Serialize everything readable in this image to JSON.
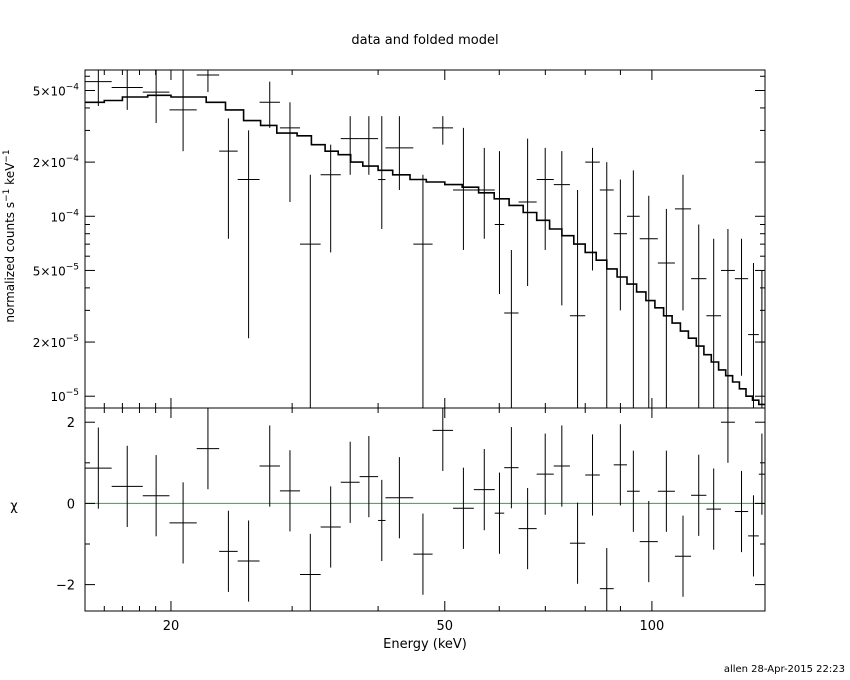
{
  "chart_data": {
    "type": "scatter",
    "title": "data and folded model",
    "xlabel": "Energy (keV)",
    "x_scale": "log",
    "xlim": [
      15,
      146
    ],
    "x_ticks": [
      {
        "value": 20,
        "label": "20"
      },
      {
        "value": 50,
        "label": "50"
      },
      {
        "value": 100,
        "label": "100"
      }
    ],
    "footer": "allen 28-Apr-2015 22:23",
    "top_panel": {
      "ylabel_parts": [
        "normalized counts s",
        "−1",
        " keV",
        "−1"
      ],
      "y_scale": "log",
      "ylim": [
        8.6e-06,
        0.00065
      ],
      "y_ticks": [
        {
          "value": 1e-05,
          "label_m": "10",
          "label_e": "−5"
        },
        {
          "value": 2e-05,
          "label_m": "2×10",
          "label_e": "−5"
        },
        {
          "value": 5e-05,
          "label_m": "5×10",
          "label_e": "−5"
        },
        {
          "value": 0.0001,
          "label_m": "10",
          "label_e": "−4"
        },
        {
          "value": 0.0002,
          "label_m": "2×10",
          "label_e": "−4"
        },
        {
          "value": 0.0005,
          "label_m": "5×10",
          "label_e": "−4"
        }
      ],
      "data": [
        [
          15.0,
          16.4,
          0.00056,
          0.00041,
          0.00065
        ],
        [
          16.4,
          18.2,
          0.00052,
          0.00039,
          0.00065
        ],
        [
          18.2,
          19.9,
          0.00049,
          0.00033,
          0.00065
        ],
        [
          19.9,
          21.8,
          0.00039,
          0.00023,
          0.00065
        ],
        [
          21.8,
          23.5,
          0.00061,
          0.00049,
          0.00065
        ],
        [
          23.5,
          25.0,
          0.00023,
          7.5e-05,
          0.00035
        ],
        [
          25.0,
          26.9,
          0.00016,
          2.1e-05,
          0.0003
        ],
        [
          26.9,
          28.8,
          0.00043,
          0.00031,
          0.00056
        ],
        [
          28.8,
          30.8,
          0.00031,
          0.00012,
          0.00043
        ],
        [
          30.8,
          33.0,
          7e-05,
          8.6e-06,
          0.00017
        ],
        [
          33.0,
          35.3,
          0.00017,
          6.3e-05,
          0.00025
        ],
        [
          35.3,
          37.6,
          0.00027,
          0.00017,
          0.00036
        ],
        [
          37.6,
          40.0,
          0.00027,
          0.00017,
          0.00036
        ],
        [
          40.0,
          41.0,
          0.00016,
          8.5e-05,
          0.00036
        ],
        [
          41.0,
          45.0,
          0.00024,
          0.00014,
          0.00036
        ],
        [
          45.0,
          48.0,
          7e-05,
          8.6e-06,
          0.00017
        ],
        [
          48.0,
          51.4,
          0.00031,
          0.00025,
          0.00036
        ],
        [
          51.4,
          55.1,
          0.00014,
          6.5e-05,
          0.00031
        ],
        [
          55.1,
          59.1,
          0.00014,
          7.5e-05,
          0.00024
        ],
        [
          59.1,
          61.0,
          9e-05,
          3.7e-05,
          0.00023
        ],
        [
          61.0,
          64.0,
          2.9e-05,
          8.6e-06,
          6.5e-05
        ],
        [
          64.0,
          68.0,
          0.00012,
          4.1e-05,
          0.00027
        ],
        [
          68.0,
          72.0,
          0.00016,
          6.5e-05,
          0.00024
        ],
        [
          72.0,
          76.0,
          0.00015,
          3.2e-05,
          0.00023
        ],
        [
          76.0,
          80.0,
          2.8e-05,
          8.6e-06,
          0.00014
        ],
        [
          80.0,
          84.0,
          0.0002,
          5e-05,
          0.00024
        ],
        [
          84.0,
          88.0,
          0.00014,
          8.6e-06,
          0.0002
        ],
        [
          88.0,
          92.0,
          8e-05,
          3e-05,
          0.00016
        ],
        [
          92.0,
          96.0,
          0.0001,
          8.6e-06,
          0.00018
        ],
        [
          96.0,
          102.0,
          7.5e-05,
          8.6e-06,
          0.00013
        ],
        [
          102.0,
          108.0,
          5.5e-05,
          8.6e-06,
          0.00011
        ],
        [
          108.0,
          114.0,
          0.00011,
          3e-05,
          0.00017
        ],
        [
          114.0,
          120.0,
          4.5e-05,
          8.6e-06,
          9e-05
        ],
        [
          120.0,
          126.0,
          2.8e-05,
          8.6e-06,
          7.5e-05
        ],
        [
          126.0,
          132.0,
          5e-05,
          8.6e-06,
          8.5e-05
        ],
        [
          132.0,
          138.0,
          4.5e-05,
          1.3e-05,
          7.5e-05
        ],
        [
          138.0,
          143.0,
          2.2e-05,
          8.6e-06,
          5.5e-05
        ],
        [
          143.0,
          146.0,
          2e-05,
          8.6e-06,
          5e-05
        ]
      ],
      "model_steps": [
        [
          15.0,
          0.00043
        ],
        [
          16.0,
          0.00044
        ],
        [
          17.0,
          0.00046
        ],
        [
          18.5,
          0.00047
        ],
        [
          20.0,
          0.00046
        ],
        [
          21.5,
          0.00046
        ],
        [
          22.5,
          0.00043
        ],
        [
          24.0,
          0.00039
        ],
        [
          25.5,
          0.00034
        ],
        [
          27.0,
          0.00032
        ],
        [
          28.5,
          0.00029
        ],
        [
          30.5,
          0.00028
        ],
        [
          32.0,
          0.00025
        ],
        [
          33.5,
          0.00023
        ],
        [
          35.0,
          0.00022
        ],
        [
          36.5,
          0.0002
        ],
        [
          38.0,
          0.00019
        ],
        [
          40.0,
          0.00018
        ],
        [
          42.0,
          0.00017
        ],
        [
          44.5,
          0.00016
        ],
        [
          47.0,
          0.000155
        ],
        [
          50.0,
          0.00015
        ],
        [
          53.0,
          0.000145
        ],
        [
          56.0,
          0.000135
        ],
        [
          59.0,
          0.000125
        ],
        [
          62.0,
          0.000115
        ],
        [
          65.0,
          0.000105
        ],
        [
          68.0,
          9.5e-05
        ],
        [
          71.0,
          8.5e-05
        ],
        [
          74.0,
          7.8e-05
        ],
        [
          77.0,
          7e-05
        ],
        [
          80.0,
          6.3e-05
        ],
        [
          83.0,
          5.7e-05
        ],
        [
          86.0,
          5.1e-05
        ],
        [
          89.0,
          4.6e-05
        ],
        [
          92.0,
          4.2e-05
        ],
        [
          95.0,
          3.8e-05
        ],
        [
          98.0,
          3.4e-05
        ],
        [
          101.0,
          3.1e-05
        ],
        [
          104.0,
          2.8e-05
        ],
        [
          107.0,
          2.55e-05
        ],
        [
          110.0,
          2.3e-05
        ],
        [
          113.0,
          2.1e-05
        ],
        [
          116.0,
          1.9e-05
        ],
        [
          119.0,
          1.7e-05
        ],
        [
          122.0,
          1.55e-05
        ],
        [
          125.0,
          1.4e-05
        ],
        [
          128.0,
          1.3e-05
        ],
        [
          131.0,
          1.2e-05
        ],
        [
          134.0,
          1.1e-05
        ],
        [
          137.0,
          1e-05
        ],
        [
          140.0,
          9.5e-06
        ],
        [
          143.0,
          9e-06
        ],
        [
          146.0,
          9e-06
        ]
      ]
    },
    "bottom_panel": {
      "ylabel": "χ",
      "ylim": [
        -2.65,
        2.35
      ],
      "y_ticks": [
        {
          "value": -2,
          "label": "−2"
        },
        {
          "value": 0,
          "label": "0"
        },
        {
          "value": 2,
          "label": "2"
        }
      ],
      "zero_line_color": "#00cc00",
      "data": [
        [
          15.0,
          16.4,
          0.87,
          -0.13,
          1.87
        ],
        [
          16.4,
          18.2,
          0.42,
          -0.58,
          1.42
        ],
        [
          18.2,
          19.9,
          0.19,
          -0.81,
          1.19
        ],
        [
          19.9,
          21.8,
          -0.48,
          -1.48,
          0.52
        ],
        [
          21.8,
          23.5,
          1.35,
          0.35,
          2.35
        ],
        [
          23.5,
          25.0,
          -1.18,
          -2.18,
          -0.18
        ],
        [
          25.0,
          26.9,
          -1.42,
          -2.42,
          -0.42
        ],
        [
          26.9,
          28.8,
          0.92,
          -0.08,
          1.92
        ],
        [
          28.8,
          30.8,
          0.31,
          -0.69,
          1.31
        ],
        [
          30.8,
          33.0,
          -1.75,
          -2.65,
          -0.75
        ],
        [
          33.0,
          35.3,
          -0.58,
          -1.58,
          0.42
        ],
        [
          35.3,
          37.6,
          0.52,
          -0.48,
          1.52
        ],
        [
          37.6,
          40.0,
          0.66,
          -0.34,
          1.66
        ],
        [
          40.0,
          41.0,
          -0.42,
          -1.42,
          0.58
        ],
        [
          41.0,
          45.0,
          0.14,
          -0.86,
          1.14
        ],
        [
          45.0,
          48.0,
          -1.25,
          -2.25,
          -0.25
        ],
        [
          48.0,
          51.4,
          1.8,
          0.8,
          2.35
        ],
        [
          51.4,
          55.1,
          -0.12,
          -1.12,
          0.88
        ],
        [
          55.1,
          59.1,
          0.34,
          -0.66,
          1.34
        ],
        [
          59.1,
          61.0,
          -0.24,
          -1.24,
          0.76
        ],
        [
          61.0,
          64.0,
          0.88,
          -0.12,
          1.88
        ],
        [
          64.0,
          68.0,
          -0.62,
          -1.62,
          0.38
        ],
        [
          68.0,
          72.0,
          0.72,
          -0.28,
          1.72
        ],
        [
          72.0,
          76.0,
          0.92,
          -0.08,
          1.92
        ],
        [
          76.0,
          80.0,
          -0.98,
          -1.98,
          0.02
        ],
        [
          80.0,
          84.0,
          0.7,
          -0.3,
          1.7
        ],
        [
          84.0,
          88.0,
          -2.1,
          -2.65,
          -1.1
        ],
        [
          88.0,
          92.0,
          0.95,
          -0.05,
          1.95
        ],
        [
          92.0,
          96.0,
          0.3,
          -0.7,
          1.3
        ],
        [
          96.0,
          102.0,
          -0.94,
          -1.94,
          0.06
        ],
        [
          102.0,
          108.0,
          0.3,
          -0.7,
          1.3
        ],
        [
          108.0,
          114.0,
          -1.3,
          -2.3,
          -0.3
        ],
        [
          114.0,
          120.0,
          0.2,
          -0.8,
          1.2
        ],
        [
          120.0,
          126.0,
          -0.14,
          -1.14,
          0.86
        ],
        [
          126.0,
          132.0,
          2.0,
          1.0,
          2.35
        ],
        [
          132.0,
          138.0,
          -0.2,
          -1.2,
          0.8
        ],
        [
          138.0,
          143.0,
          -0.8,
          -1.8,
          0.2
        ],
        [
          143.0,
          146.0,
          0.72,
          -0.28,
          1.72
        ]
      ]
    }
  }
}
